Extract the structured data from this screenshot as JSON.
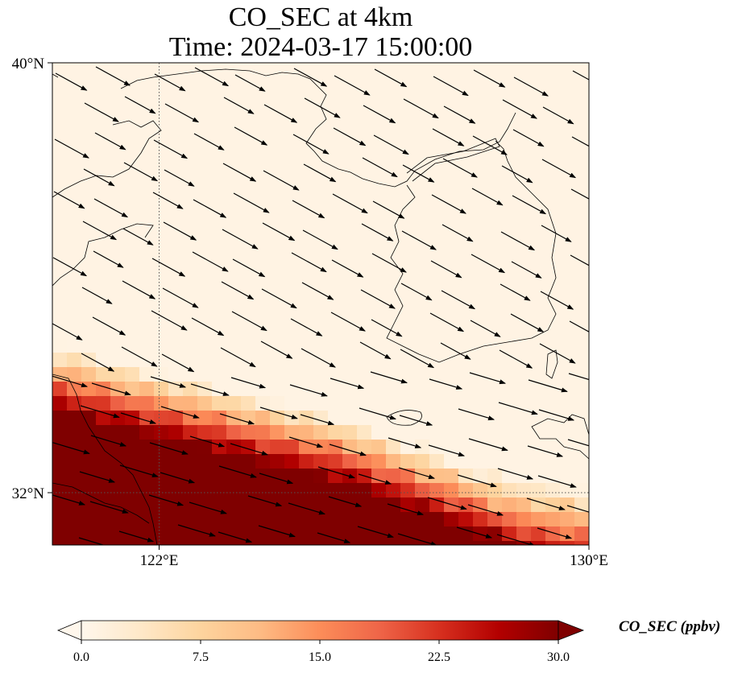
{
  "title": {
    "line1": "CO_SEC at 4km",
    "line2": "Time: 2024-03-17 15:00:00"
  },
  "map": {
    "lon_range": [
      117,
      130
    ],
    "lat_range": [
      30.8,
      40
    ],
    "lat_ticks": [
      {
        "value": 40,
        "label": "40°N"
      },
      {
        "value": 32,
        "label": "32°N"
      }
    ],
    "lon_ticks": [
      {
        "value": 122,
        "label": "122°E"
      },
      {
        "value": 130,
        "label": "130°E"
      }
    ],
    "gridlines": {
      "lon": [
        122
      ],
      "lat": [
        32
      ],
      "style": "dotted"
    },
    "field": "CO_SEC",
    "colormap": "OrRd",
    "description_of_field": "high values in south-west, decreasing north-eastward; near zero over northern region"
  },
  "wind_vectors": {
    "direction": "towards east-south-east",
    "color": "#000000"
  },
  "colorbar": {
    "label": "CO_SEC (ppbv)",
    "min": 0.0,
    "max": 30.0,
    "ticks": [
      "0.0",
      "7.5",
      "15.0",
      "22.5",
      "30.0"
    ],
    "extend": "both",
    "colors": [
      "#fff7ec",
      "#fee8c8",
      "#fdd49e",
      "#fdbb84",
      "#fc8d59",
      "#ef6548",
      "#d7301f",
      "#b30000",
      "#7f0000"
    ]
  }
}
